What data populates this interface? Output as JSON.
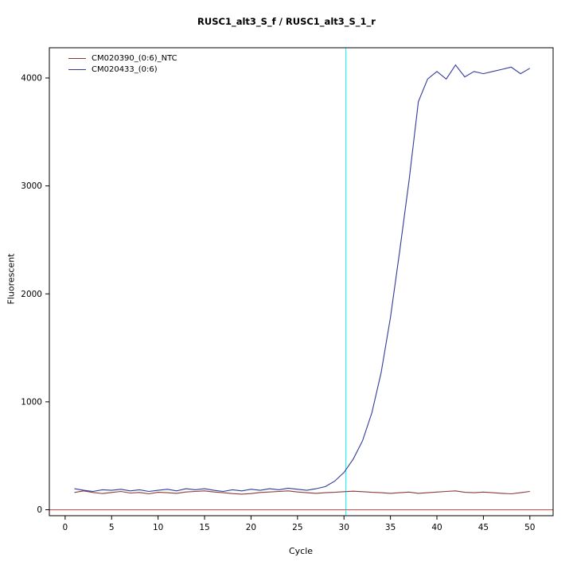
{
  "chart_data": {
    "type": "line",
    "title": "RUSC1_alt3_S_f / RUSC1_alt3_S_1_r",
    "xlabel": "Cycle",
    "ylabel": "Fluorescent",
    "xlim": [
      -1.7,
      52.5
    ],
    "ylim": [
      -55,
      4280
    ],
    "xticks": [
      0,
      5,
      10,
      15,
      20,
      25,
      30,
      35,
      40,
      45,
      50
    ],
    "yticks": [
      0,
      1000,
      2000,
      3000,
      4000
    ],
    "grid": false,
    "legend_position": "top-left",
    "x_start": 1,
    "threshold_line": {
      "x": 30.2,
      "color": "#00ffff"
    },
    "baseline": {
      "y": 0,
      "color": "#cc5555"
    },
    "series": [
      {
        "name": "CM020390_(0:6)_NTC",
        "color": "#8b3a3a",
        "values": [
          160,
          175,
          160,
          150,
          160,
          170,
          155,
          160,
          148,
          162,
          158,
          152,
          165,
          170,
          175,
          165,
          158,
          150,
          145,
          150,
          160,
          165,
          170,
          175,
          165,
          158,
          152,
          158,
          162,
          168,
          172,
          168,
          162,
          158,
          152,
          158,
          164,
          152,
          158,
          164,
          170,
          175,
          162,
          158,
          164,
          158,
          152,
          148,
          158,
          170
        ]
      },
      {
        "name": "CM020433_(0:6)",
        "color": "#333a99",
        "values": [
          195,
          180,
          170,
          185,
          180,
          190,
          175,
          185,
          170,
          180,
          190,
          175,
          195,
          185,
          195,
          180,
          170,
          185,
          175,
          190,
          180,
          195,
          185,
          200,
          190,
          180,
          195,
          215,
          265,
          345,
          470,
          640,
          900,
          1270,
          1780,
          2400,
          3050,
          3780,
          3990,
          4060,
          3990,
          4120,
          4010,
          4060,
          4040,
          4060,
          4080,
          4100,
          4040,
          4090
        ]
      }
    ]
  }
}
